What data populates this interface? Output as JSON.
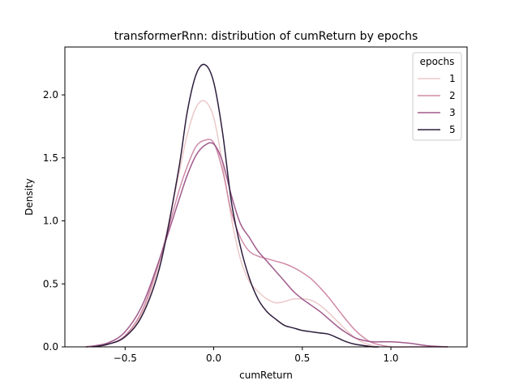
{
  "chart_data": {
    "type": "line",
    "title": "transformerRnn: distribution of cumReturn by epochs",
    "xlabel": "cumReturn",
    "ylabel": "Density",
    "xlim": [
      -0.84,
      1.43
    ],
    "ylim": [
      0,
      2.38
    ],
    "xticks": [
      -0.5,
      0.0,
      0.5,
      1.0
    ],
    "xtick_labels": [
      "−0.5",
      "0.0",
      "0.5",
      "1.0"
    ],
    "yticks": [
      0.0,
      0.5,
      1.0,
      1.5,
      2.0
    ],
    "ytick_labels": [
      "0.0",
      "0.5",
      "1.0",
      "1.5",
      "2.0"
    ],
    "grid": false,
    "legend": {
      "title": "epochs",
      "placement": "top-right"
    },
    "series": [
      {
        "name": "1",
        "color": "#ebc9c8",
        "x": [
          -0.72,
          -0.6,
          -0.5,
          -0.4,
          -0.3,
          -0.2,
          -0.15,
          -0.1,
          -0.05,
          0.0,
          0.05,
          0.1,
          0.15,
          0.2,
          0.25,
          0.3,
          0.35,
          0.4,
          0.45,
          0.5,
          0.55,
          0.6,
          0.65,
          0.7,
          0.75,
          0.8,
          0.85,
          0.9,
          0.93
        ],
        "y": [
          0.0,
          0.02,
          0.08,
          0.28,
          0.7,
          1.35,
          1.68,
          1.9,
          1.95,
          1.82,
          1.45,
          1.02,
          0.7,
          0.52,
          0.44,
          0.38,
          0.35,
          0.36,
          0.38,
          0.38,
          0.37,
          0.33,
          0.27,
          0.2,
          0.13,
          0.07,
          0.03,
          0.01,
          0.0
        ]
      },
      {
        "name": "2",
        "color": "#d08ba8",
        "x": [
          -0.72,
          -0.6,
          -0.5,
          -0.4,
          -0.3,
          -0.2,
          -0.15,
          -0.1,
          -0.05,
          0.0,
          0.05,
          0.1,
          0.15,
          0.2,
          0.25,
          0.3,
          0.35,
          0.4,
          0.45,
          0.5,
          0.55,
          0.6,
          0.65,
          0.7,
          0.75,
          0.8,
          0.85,
          0.9,
          1.0,
          1.1,
          1.2,
          1.32
        ],
        "y": [
          0.0,
          0.02,
          0.09,
          0.3,
          0.72,
          1.22,
          1.43,
          1.59,
          1.64,
          1.62,
          1.4,
          1.07,
          0.87,
          0.76,
          0.72,
          0.7,
          0.68,
          0.66,
          0.63,
          0.59,
          0.54,
          0.47,
          0.39,
          0.3,
          0.21,
          0.13,
          0.07,
          0.03,
          0.0,
          0.0,
          0.0,
          0.0
        ]
      },
      {
        "name": "3",
        "color": "#a05a8c",
        "x": [
          -0.72,
          -0.6,
          -0.5,
          -0.4,
          -0.3,
          -0.2,
          -0.15,
          -0.1,
          -0.05,
          0.0,
          0.05,
          0.1,
          0.15,
          0.2,
          0.25,
          0.3,
          0.35,
          0.4,
          0.45,
          0.5,
          0.55,
          0.6,
          0.65,
          0.7,
          0.75,
          0.8,
          0.85,
          0.9,
          1.0,
          1.1,
          1.2,
          1.32
        ],
        "y": [
          0.0,
          0.03,
          0.12,
          0.34,
          0.72,
          1.15,
          1.36,
          1.52,
          1.6,
          1.61,
          1.47,
          1.2,
          0.98,
          0.87,
          0.76,
          0.68,
          0.6,
          0.52,
          0.44,
          0.38,
          0.33,
          0.28,
          0.22,
          0.16,
          0.11,
          0.07,
          0.05,
          0.04,
          0.04,
          0.03,
          0.01,
          0.0
        ]
      },
      {
        "name": "5",
        "color": "#2e1e3d",
        "x": [
          -0.68,
          -0.6,
          -0.5,
          -0.4,
          -0.3,
          -0.2,
          -0.15,
          -0.1,
          -0.05,
          0.0,
          0.05,
          0.1,
          0.15,
          0.2,
          0.25,
          0.3,
          0.35,
          0.4,
          0.45,
          0.5,
          0.55,
          0.6,
          0.65,
          0.7,
          0.75,
          0.8,
          0.85,
          0.9,
          0.93
        ],
        "y": [
          0.0,
          0.02,
          0.08,
          0.26,
          0.66,
          1.39,
          1.86,
          2.16,
          2.24,
          2.1,
          1.7,
          1.15,
          0.8,
          0.55,
          0.38,
          0.28,
          0.22,
          0.17,
          0.15,
          0.13,
          0.12,
          0.11,
          0.1,
          0.07,
          0.04,
          0.02,
          0.01,
          0.0,
          0.0
        ]
      }
    ]
  }
}
